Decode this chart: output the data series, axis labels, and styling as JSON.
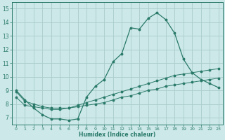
{
  "xlabel": "Humidex (Indice chaleur)",
  "bg_color": "#cce8e8",
  "grid_color": "#aacccc",
  "line_color": "#2a7a6a",
  "xlim": [
    -0.5,
    23.5
  ],
  "ylim": [
    6.5,
    15.5
  ],
  "yticks": [
    7,
    8,
    9,
    10,
    11,
    12,
    13,
    14,
    15
  ],
  "xticks": [
    0,
    1,
    2,
    3,
    4,
    5,
    6,
    7,
    8,
    9,
    10,
    11,
    12,
    13,
    14,
    15,
    16,
    17,
    18,
    19,
    20,
    21,
    22,
    23
  ],
  "line1_x": [
    0,
    1,
    2,
    3,
    4,
    5,
    6,
    7,
    8,
    9,
    10,
    11,
    12,
    13,
    14,
    15,
    16,
    17,
    18,
    19,
    20,
    21,
    22,
    23
  ],
  "line1_y": [
    9.0,
    8.3,
    7.7,
    7.2,
    6.9,
    6.9,
    6.8,
    6.9,
    8.5,
    9.3,
    9.8,
    11.1,
    11.7,
    13.6,
    13.5,
    14.3,
    14.7,
    14.2,
    13.2,
    11.3,
    10.3,
    9.8,
    9.5,
    9.2
  ],
  "line2_x": [
    0,
    1,
    2,
    3,
    4,
    5,
    6,
    7,
    8,
    9,
    10,
    11,
    12,
    13,
    14,
    15,
    16,
    17,
    18,
    19,
    20,
    21,
    22,
    23
  ],
  "line2_y": [
    8.9,
    8.2,
    8.0,
    7.8,
    7.7,
    7.7,
    7.7,
    7.9,
    8.1,
    8.3,
    8.5,
    8.7,
    8.9,
    9.1,
    9.3,
    9.5,
    9.7,
    9.9,
    10.1,
    10.2,
    10.3,
    10.4,
    10.5,
    10.6
  ],
  "line3_x": [
    0,
    1,
    2,
    3,
    4,
    5,
    6,
    7,
    8,
    9,
    10,
    11,
    12,
    13,
    14,
    15,
    16,
    17,
    18,
    19,
    20,
    21,
    22,
    23
  ],
  "line3_y": [
    8.5,
    7.9,
    7.8,
    7.7,
    7.6,
    7.6,
    7.7,
    7.8,
    7.9,
    8.0,
    8.1,
    8.3,
    8.5,
    8.6,
    8.8,
    9.0,
    9.1,
    9.3,
    9.4,
    9.5,
    9.6,
    9.7,
    9.8,
    9.9
  ]
}
